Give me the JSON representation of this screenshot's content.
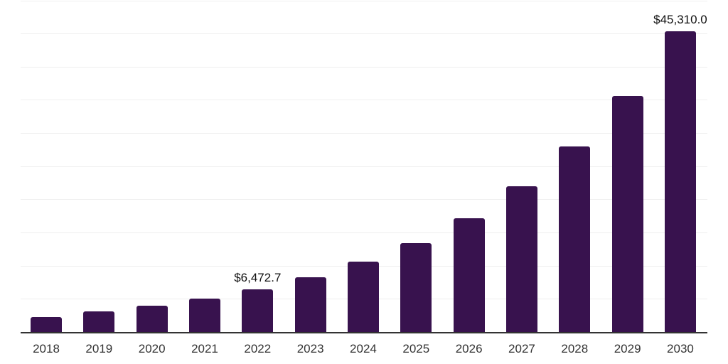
{
  "chart_data": {
    "type": "bar",
    "title": "",
    "xlabel": "",
    "ylabel": "",
    "categories": [
      "2018",
      "2019",
      "2020",
      "2021",
      "2022",
      "2023",
      "2024",
      "2025",
      "2026",
      "2027",
      "2028",
      "2029",
      "2030"
    ],
    "values": [
      2300,
      3100,
      4000,
      5080,
      6472.7,
      8250,
      10600,
      13400,
      17150,
      21950,
      28000,
      35600,
      45310.0
    ],
    "value_labels": [
      {
        "index": 4,
        "text": "$6,472.7"
      },
      {
        "index": 12,
        "text": "$45,310.0"
      }
    ],
    "ylim": [
      0,
      50000
    ],
    "gridline_interval": 5000,
    "grid": true,
    "legend": "none",
    "colors": {
      "bar": "#38124e",
      "axis_line": "#333333",
      "gridline": "#efefef",
      "tick_label": "#333333",
      "value_label": "#111111",
      "background": "#ffffff"
    }
  }
}
